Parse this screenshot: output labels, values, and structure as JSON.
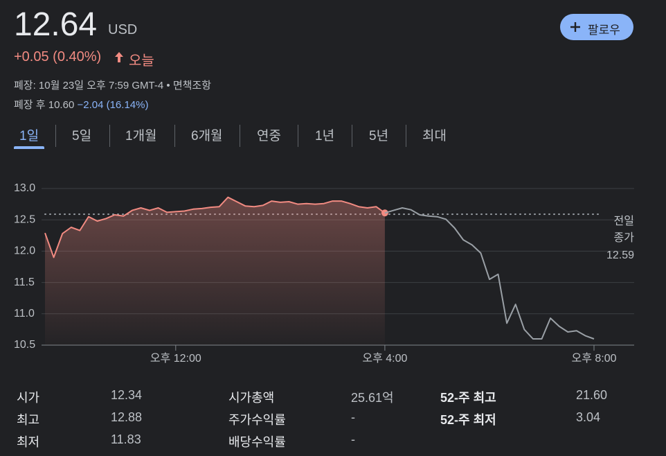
{
  "header": {
    "price": "12.64",
    "currency": "USD",
    "change": "+0.05 (0.40%)",
    "change_period": "오늘",
    "closed_note": "폐장: 10월 23일 오후 7:59 GMT-4",
    "disclaimer": "면책조항",
    "after_hours": {
      "label": "폐장 후",
      "price": "10.60",
      "change": "−2.04 (16.14%)"
    },
    "follow_button": "팔로우"
  },
  "tabs": [
    "1일",
    "5일",
    "1개월",
    "6개월",
    "연중",
    "1년",
    "5년",
    "최대"
  ],
  "chart_data": {
    "type": "line",
    "xlim": [
      570,
      1200
    ],
    "xticks": [
      {
        "value": 720,
        "label": "오후 12:00"
      },
      {
        "value": 960,
        "label": "오후 4:00"
      },
      {
        "value": 1200,
        "label": "오후 8:00"
      }
    ],
    "ylim": [
      10.5,
      13.0
    ],
    "yticks": [
      10.5,
      {
        "value": 11,
        "label": "11.0"
      },
      11.5,
      {
        "value": 12,
        "label": "12.0"
      },
      12.5,
      {
        "value": 13,
        "label": "13.0"
      }
    ],
    "grid": true,
    "series": [
      {
        "color": "#f28b82",
        "area": true,
        "end_marker": true,
        "x": [
          570,
          580,
          590,
          600,
          610,
          620,
          630,
          640,
          650,
          660,
          670,
          680,
          690,
          700,
          710,
          720,
          730,
          740,
          750,
          760,
          770,
          780,
          790,
          800,
          810,
          820,
          830,
          840,
          850,
          860,
          870,
          880,
          890,
          900,
          910,
          920,
          930,
          940,
          950,
          960
        ],
        "values": [
          12.29,
          11.9,
          12.28,
          12.38,
          12.33,
          12.55,
          12.48,
          12.52,
          12.58,
          12.56,
          12.65,
          12.69,
          12.65,
          12.69,
          12.62,
          12.63,
          12.64,
          12.67,
          12.68,
          12.7,
          12.71,
          12.86,
          12.79,
          12.72,
          12.71,
          12.73,
          12.8,
          12.78,
          12.79,
          12.75,
          12.76,
          12.75,
          12.76,
          12.8,
          12.8,
          12.76,
          12.71,
          12.69,
          12.71,
          12.61
        ]
      },
      {
        "color": "#9aa0a6",
        "x": [
          960,
          970,
          980,
          990,
          1000,
          1010,
          1020,
          1030,
          1040,
          1050,
          1060,
          1070,
          1080,
          1090,
          1100,
          1110,
          1120,
          1130,
          1140,
          1150,
          1160,
          1170,
          1180,
          1190,
          1200
        ],
        "values": [
          12.61,
          12.65,
          12.69,
          12.66,
          12.58,
          12.56,
          12.55,
          12.51,
          12.37,
          12.18,
          12.1,
          11.97,
          11.55,
          11.63,
          10.85,
          11.15,
          10.75,
          10.6,
          10.6,
          10.93,
          10.8,
          10.71,
          10.73,
          10.65,
          10.6
        ]
      }
    ],
    "previous_close": {
      "label_lines": [
        "전일",
        "종가"
      ],
      "value": 12.59
    }
  },
  "stats": {
    "rows": [
      [
        "시가",
        "12.34",
        "시가총액",
        "25.61억",
        "52-주 최고",
        "21.60"
      ],
      [
        "최고",
        "12.88",
        "주가수익률",
        "-",
        "52-주 최저",
        "3.04"
      ],
      [
        "최저",
        "11.83",
        "배당수익률",
        "-"
      ]
    ]
  }
}
